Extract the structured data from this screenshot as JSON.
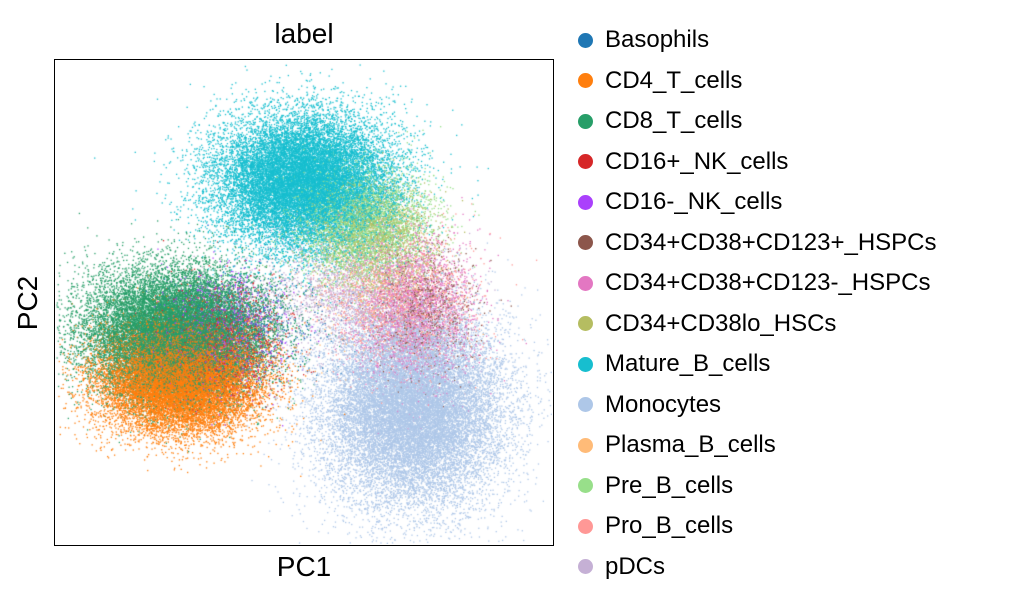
{
  "chart_data": {
    "type": "scatter",
    "title": "label",
    "xlabel": "PC1",
    "ylabel": "PC2",
    "grid": false,
    "ticks": "none",
    "legend_placement": "right",
    "series": [
      {
        "name": "Basophils",
        "color": "#1f77b4"
      },
      {
        "name": "CD4_T_cells",
        "color": "#ff7f0e"
      },
      {
        "name": "CD8_T_cells",
        "color": "#279e68"
      },
      {
        "name": "CD16+_NK_cells",
        "color": "#d62728"
      },
      {
        "name": "CD16-_NK_cells",
        "color": "#aa40fc"
      },
      {
        "name": "CD34+CD38+CD123+_HSPCs",
        "color": "#8c564b"
      },
      {
        "name": "CD34+CD38+CD123-_HSPCs",
        "color": "#e377c2"
      },
      {
        "name": "CD34+CD38lo_HSCs",
        "color": "#b5bd61"
      },
      {
        "name": "Mature_B_cells",
        "color": "#17becf"
      },
      {
        "name": "Monocytes",
        "color": "#aec7e8"
      },
      {
        "name": "Plasma_B_cells",
        "color": "#ffbb78"
      },
      {
        "name": "Pre_B_cells",
        "color": "#98df8a"
      },
      {
        "name": "Pro_B_cells",
        "color": "#ff9896"
      },
      {
        "name": "pDCs",
        "color": "#c5b0d5"
      }
    ],
    "clusters": [
      {
        "label": "Monocytes",
        "center": [
          0.72,
          0.28
        ],
        "spread": [
          0.09,
          0.1
        ],
        "share": 0.22
      },
      {
        "label": "CD4_T_cells",
        "center": [
          0.25,
          0.34
        ],
        "spread": [
          0.08,
          0.055
        ],
        "share": 0.18
      },
      {
        "label": "CD8_T_cells",
        "center": [
          0.24,
          0.44
        ],
        "spread": [
          0.09,
          0.065
        ],
        "share": 0.2
      },
      {
        "label": "CD16+_NK_cells",
        "center": [
          0.34,
          0.42
        ],
        "spread": [
          0.06,
          0.06
        ],
        "share": 0.015
      },
      {
        "label": "CD16-_NK_cells",
        "center": [
          0.33,
          0.44
        ],
        "spread": [
          0.06,
          0.06
        ],
        "share": 0.015
      },
      {
        "label": "Basophils",
        "center": [
          0.4,
          0.46
        ],
        "spread": [
          0.08,
          0.06
        ],
        "share": 0.006
      },
      {
        "label": "Mature_B_cells",
        "center": [
          0.5,
          0.75
        ],
        "spread": [
          0.09,
          0.07
        ],
        "share": 0.2
      },
      {
        "label": "Pre_B_cells",
        "center": [
          0.62,
          0.66
        ],
        "spread": [
          0.07,
          0.06
        ],
        "share": 0.04
      },
      {
        "label": "CD34+CD38lo_HSCs",
        "center": [
          0.64,
          0.64
        ],
        "spread": [
          0.06,
          0.05
        ],
        "share": 0.02
      },
      {
        "label": "Pro_B_cells",
        "center": [
          0.7,
          0.5
        ],
        "spread": [
          0.07,
          0.07
        ],
        "share": 0.02
      },
      {
        "label": "CD34+CD38+CD123-_HSPCs",
        "center": [
          0.72,
          0.48
        ],
        "spread": [
          0.06,
          0.08
        ],
        "share": 0.03
      },
      {
        "label": "CD34+CD38+CD123+_HSPCs",
        "center": [
          0.74,
          0.48
        ],
        "spread": [
          0.05,
          0.06
        ],
        "share": 0.01
      },
      {
        "label": "pDCs",
        "center": [
          0.58,
          0.52
        ],
        "spread": [
          0.1,
          0.06
        ],
        "share": 0.02
      },
      {
        "label": "Plasma_B_cells",
        "center": [
          0.66,
          0.52
        ],
        "spread": [
          0.08,
          0.06
        ],
        "share": 0.005
      }
    ],
    "xlim": [
      0,
      1
    ],
    "ylim": [
      0,
      1
    ]
  }
}
